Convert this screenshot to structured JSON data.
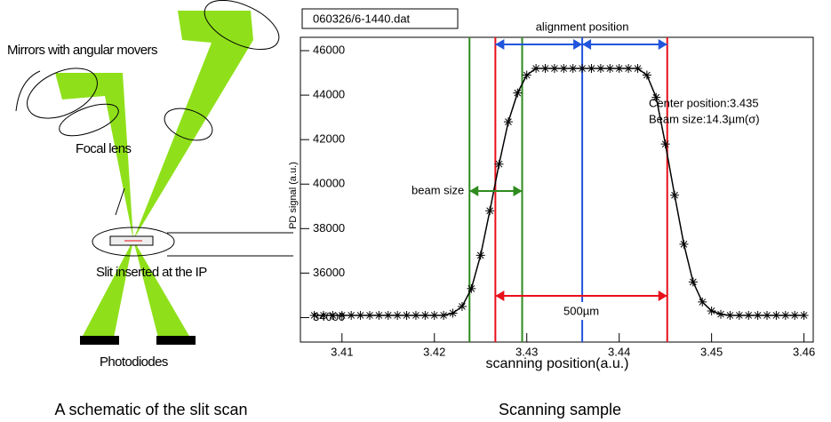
{
  "schematic": {
    "mirrors": "Mirrors with angular movers",
    "lens": "Focal lens",
    "slit": "Slit inserted at the IP",
    "detectors": "Photodiodes",
    "caption": "A schematic of the slit scan"
  },
  "chart_data": {
    "type": "scatter",
    "file_label": "060326/6-1440.dat",
    "x_label": "scanning position(a.u.)",
    "y_label": "PD signal (a.u.)",
    "caption": "Scanning sample",
    "x": [
      3.407,
      3.408,
      3.409,
      3.41,
      3.411,
      3.412,
      3.413,
      3.414,
      3.415,
      3.416,
      3.417,
      3.418,
      3.419,
      3.42,
      3.421,
      3.422,
      3.423,
      3.424,
      3.425,
      3.426,
      3.427,
      3.428,
      3.429,
      3.43,
      3.431,
      3.432,
      3.433,
      3.434,
      3.435,
      3.436,
      3.437,
      3.438,
      3.439,
      3.44,
      3.441,
      3.442,
      3.443,
      3.444,
      3.445,
      3.446,
      3.447,
      3.448,
      3.449,
      3.45,
      3.451,
      3.452,
      3.453,
      3.454,
      3.455,
      3.456,
      3.457,
      3.458,
      3.459,
      3.46
    ],
    "series": [
      {
        "color": "#000000",
        "values": [
          34100,
          34100,
          34100,
          34100,
          34100,
          34100,
          34100,
          34100,
          34100,
          34100,
          34100,
          34100,
          34100,
          34100,
          34100,
          34200,
          34500,
          35300,
          36800,
          38800,
          40900,
          42800,
          44100,
          44900,
          45200,
          45200,
          45200,
          45200,
          45200,
          45200,
          45200,
          45200,
          45200,
          45200,
          45200,
          45200,
          44900,
          43900,
          41800,
          39500,
          37300,
          35600,
          34700,
          34300,
          34150,
          34100,
          34100,
          34100,
          34100,
          34100,
          34100,
          34100,
          34100,
          34100
        ]
      }
    ],
    "xlim": [
      3.4055,
      3.461
    ],
    "ylim": [
      32900,
      46600
    ],
    "xticks": [
      3.41,
      3.42,
      3.43,
      3.44,
      3.45,
      3.46
    ],
    "yticks": [
      34000,
      36000,
      38000,
      40000,
      42000,
      44000,
      46000
    ],
    "vlines": [
      {
        "x": 3.4238,
        "color": "#2e8b1e"
      },
      {
        "x": 3.4295,
        "color": "#2e8b1e"
      },
      {
        "x": 3.4266,
        "color": "#e8101a"
      },
      {
        "x": 3.4452,
        "color": "#e8101a"
      },
      {
        "x": 3.436,
        "color": "#2255dd"
      }
    ],
    "annotations": [
      {
        "text": "beam size",
        "color": "#2e8b1e"
      },
      {
        "text": "alignment position",
        "color": "#2255dd"
      },
      {
        "text": "500µm",
        "color": "#e8101a"
      }
    ],
    "notes": [
      "Center position:3.435",
      "Beam size:14.3µm(σ)"
    ]
  }
}
